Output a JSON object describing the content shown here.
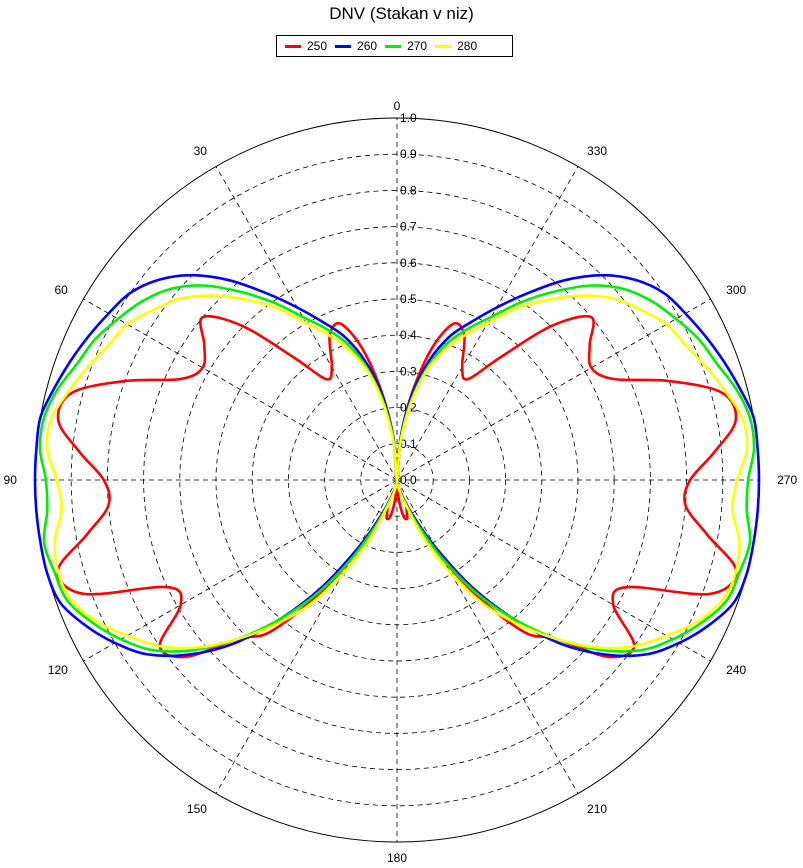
{
  "chart_data": {
    "type": "polar-line",
    "title": "DNV (Stakan v niz)",
    "angle_direction": "counterclockwise",
    "zero_direction": "top",
    "radial_range": [
      0,
      1.0
    ],
    "radial_ticks": [
      "0.0",
      "0.1",
      "0.2",
      "0.3",
      "0.4",
      "0.5",
      "0.6",
      "0.7",
      "0.8",
      "0.9",
      "1.0"
    ],
    "angle_ticks": [
      "0",
      "30",
      "60",
      "90",
      "120",
      "150",
      "180",
      "210",
      "240",
      "270",
      "300",
      "330"
    ],
    "grid": true,
    "legend_placement": "top-center",
    "series": [
      {
        "name": "250",
        "color": "#ff0000",
        "theta": [
          0,
          5,
          10,
          15,
          20,
          25,
          30,
          35,
          40,
          45,
          50,
          55,
          60,
          65,
          70,
          75,
          80,
          85,
          90,
          95,
          100,
          105,
          110,
          115,
          120,
          125,
          130,
          135,
          140,
          145,
          150,
          155,
          160,
          165,
          170,
          175,
          180
        ],
        "r": [
          0.0,
          0.12,
          0.25,
          0.38,
          0.46,
          0.44,
          0.36,
          0.34,
          0.44,
          0.6,
          0.7,
          0.65,
          0.62,
          0.66,
          0.8,
          0.93,
          0.95,
          0.88,
          0.81,
          0.8,
          0.87,
          0.97,
          0.92,
          0.7,
          0.69,
          0.8,
          0.76,
          0.62,
          0.55,
          0.4,
          0.25,
          0.12,
          0.08,
          0.11,
          0.1,
          0.05,
          0.0
        ]
      },
      {
        "name": "260",
        "color": "#0000ff",
        "theta": [
          0,
          5,
          10,
          15,
          20,
          25,
          30,
          35,
          40,
          45,
          50,
          55,
          60,
          65,
          70,
          75,
          80,
          85,
          90,
          95,
          100,
          105,
          110,
          115,
          120,
          125,
          130,
          135,
          140,
          145,
          150,
          155,
          160,
          165,
          170,
          175,
          180
        ],
        "r": [
          0.0,
          0.12,
          0.24,
          0.34,
          0.42,
          0.48,
          0.55,
          0.63,
          0.72,
          0.8,
          0.86,
          0.9,
          0.92,
          0.94,
          0.96,
          0.98,
          1.0,
          1.0,
          1.0,
          1.0,
          1.0,
          1.0,
          0.99,
          0.95,
          0.9,
          0.84,
          0.75,
          0.64,
          0.5,
          0.36,
          0.22,
          0.12,
          0.06,
          0.03,
          0.02,
          0.01,
          0.0
        ]
      },
      {
        "name": "270",
        "color": "#00ee00",
        "theta": [
          0,
          5,
          10,
          15,
          20,
          25,
          30,
          35,
          40,
          45,
          50,
          55,
          60,
          65,
          70,
          75,
          80,
          85,
          90,
          95,
          100,
          105,
          110,
          115,
          120,
          125,
          130,
          135,
          140,
          145,
          150,
          155,
          160,
          165,
          170,
          175,
          180
        ],
        "r": [
          0.0,
          0.11,
          0.22,
          0.32,
          0.4,
          0.46,
          0.52,
          0.6,
          0.68,
          0.76,
          0.82,
          0.86,
          0.89,
          0.92,
          0.94,
          0.97,
          0.99,
          0.99,
          0.97,
          0.97,
          0.99,
          0.98,
          0.97,
          0.93,
          0.88,
          0.82,
          0.73,
          0.62,
          0.5,
          0.38,
          0.25,
          0.14,
          0.07,
          0.04,
          0.02,
          0.01,
          0.0
        ]
      },
      {
        "name": "280",
        "color": "#ffff00",
        "theta": [
          0,
          5,
          10,
          15,
          20,
          25,
          30,
          35,
          40,
          45,
          50,
          55,
          60,
          65,
          70,
          75,
          80,
          85,
          90,
          95,
          100,
          105,
          110,
          115,
          120,
          125,
          130,
          135,
          140,
          145,
          150,
          155,
          160,
          165,
          170,
          175,
          180
        ],
        "r": [
          0.0,
          0.1,
          0.21,
          0.31,
          0.38,
          0.44,
          0.5,
          0.58,
          0.65,
          0.72,
          0.78,
          0.82,
          0.86,
          0.88,
          0.91,
          0.94,
          0.97,
          0.97,
          0.94,
          0.93,
          0.96,
          0.97,
          0.96,
          0.92,
          0.86,
          0.8,
          0.72,
          0.62,
          0.52,
          0.42,
          0.3,
          0.18,
          0.08,
          0.04,
          0.02,
          0.01,
          0.0
        ]
      }
    ]
  }
}
